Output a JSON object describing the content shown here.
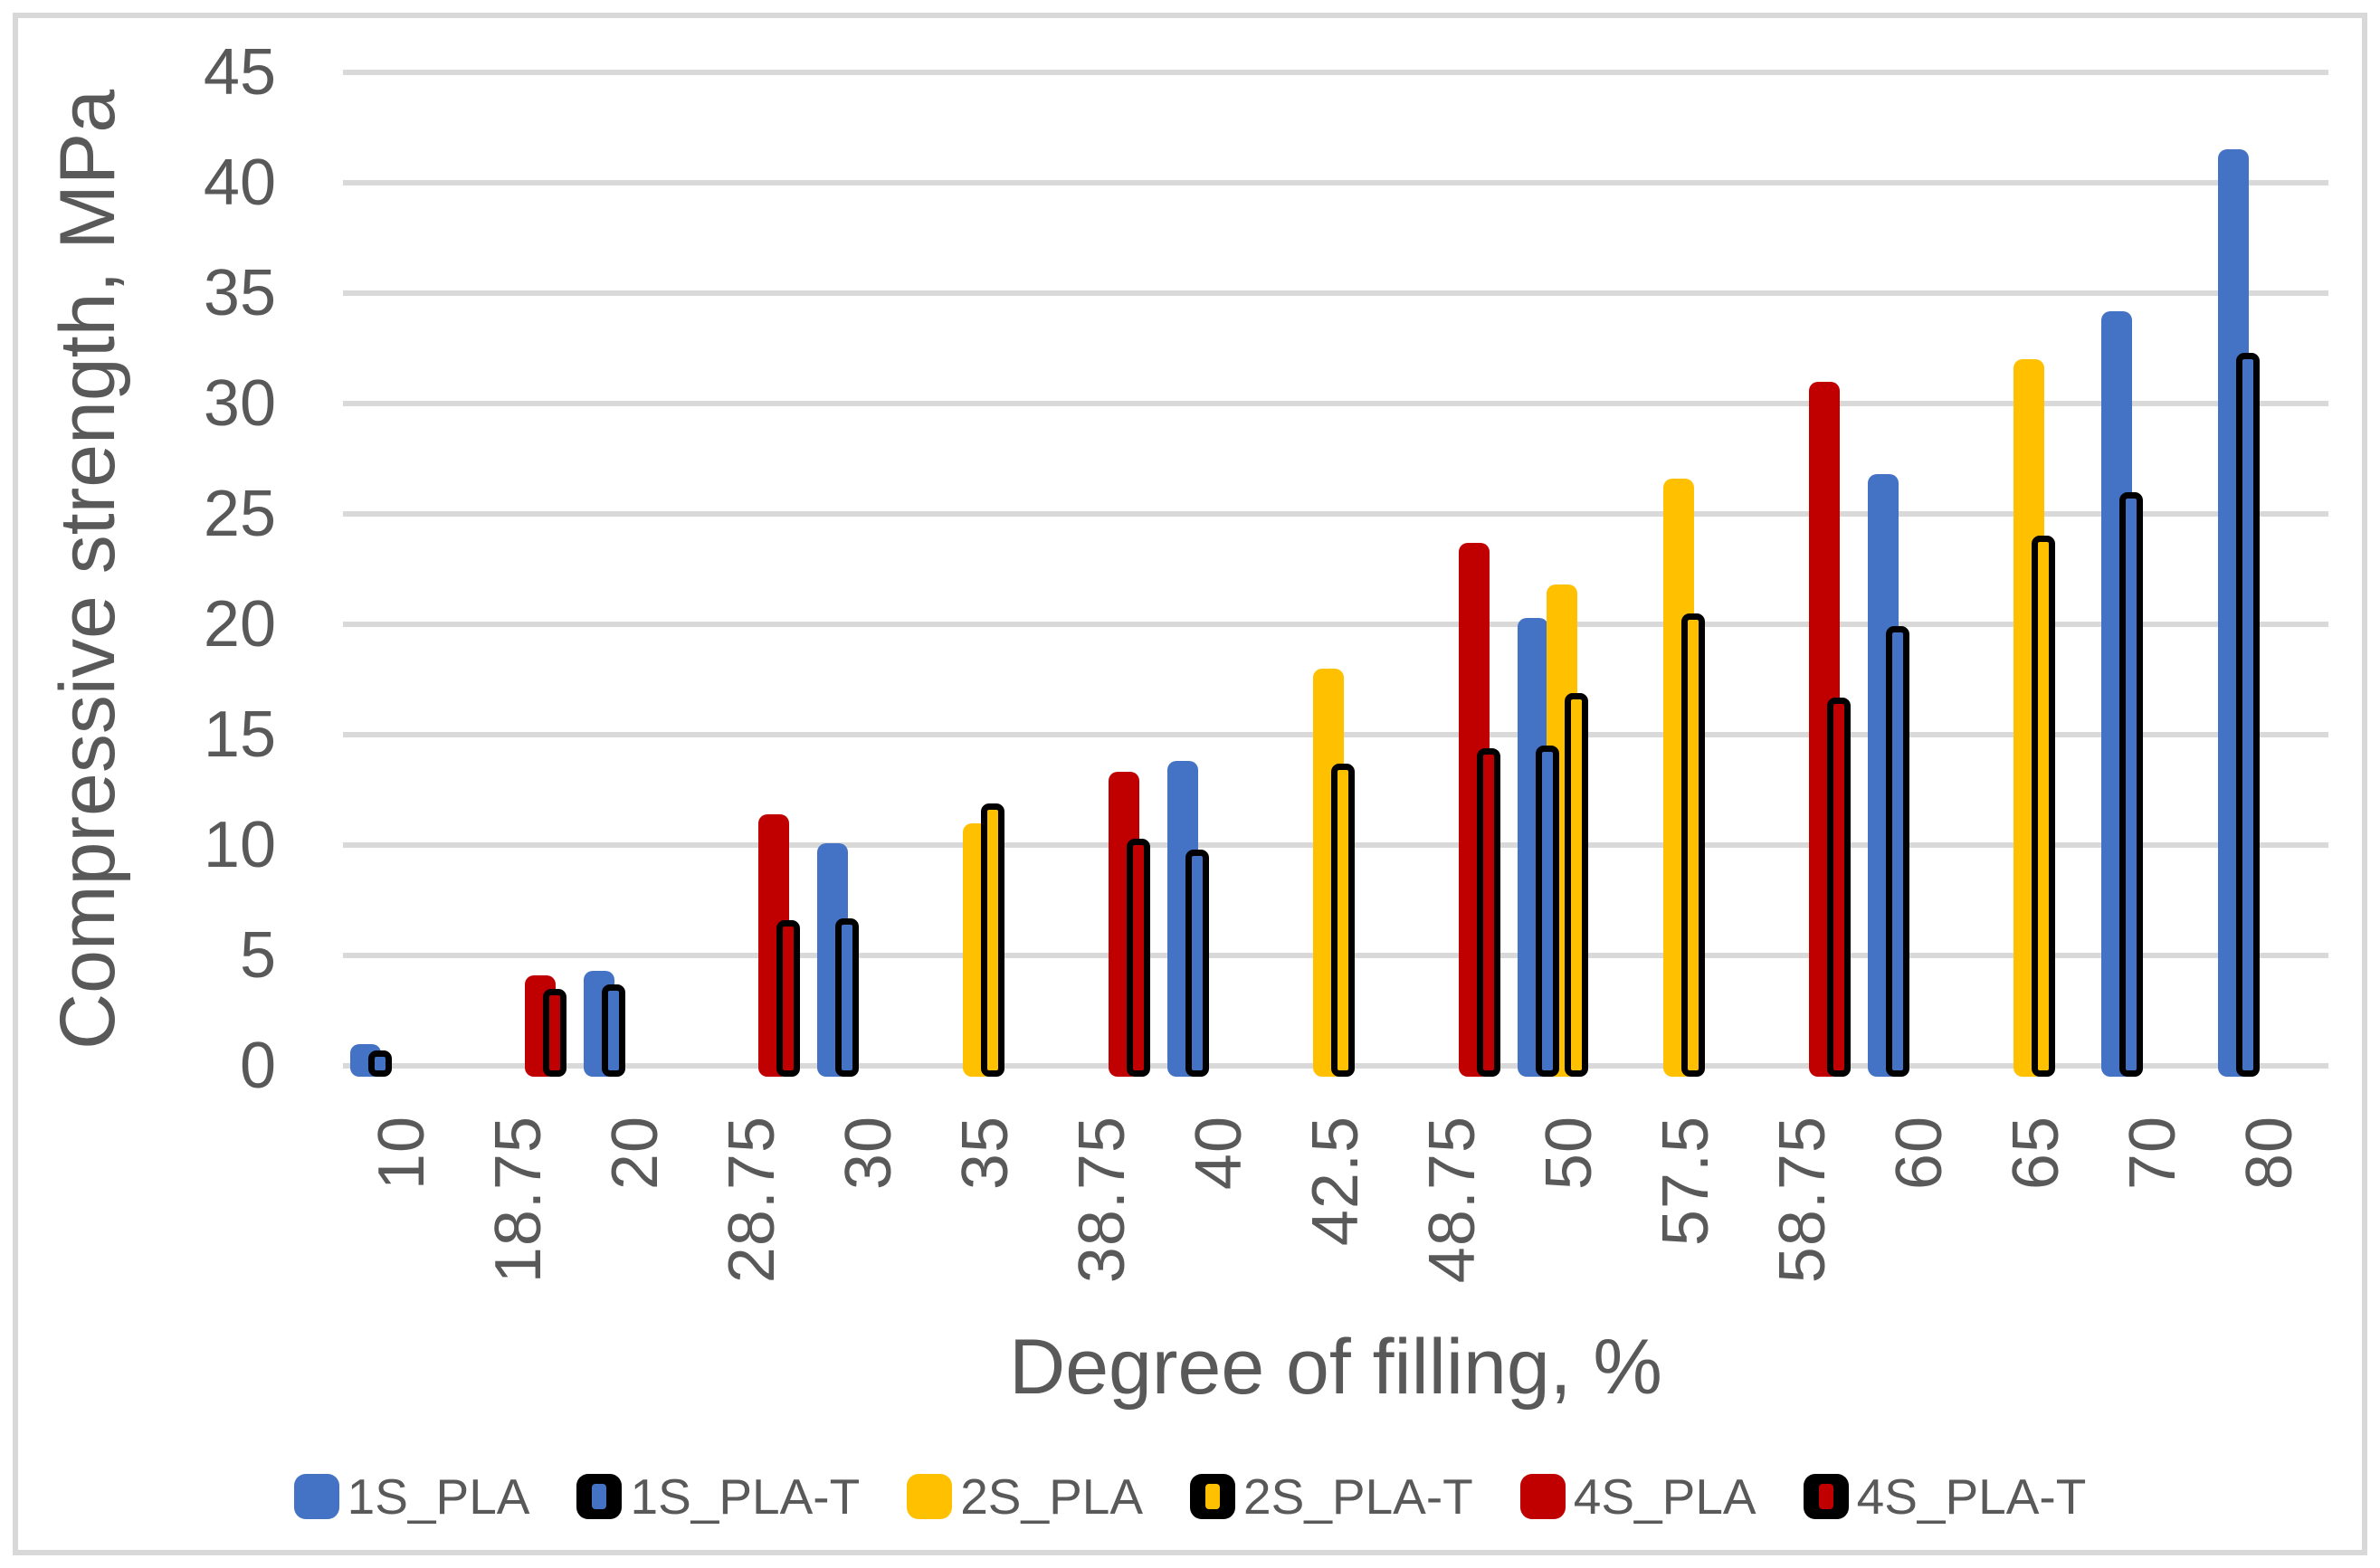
{
  "figure": {
    "y_axis_title": "Compressive strength, MPa",
    "x_axis_title": "Degree of filling, %"
  },
  "colors": {
    "blue": "#4472C4",
    "yellow": "#FFC000",
    "red": "#C00000",
    "outline": "#000000",
    "gridline": "#D9D9D9",
    "text": "#595959",
    "chart_border": "#D8D8D8"
  },
  "chart_data": {
    "type": "bar",
    "title": "",
    "xlabel": "Degree of filling, %",
    "ylabel": "Compressive strength, MPa",
    "ylim": [
      0,
      45
    ],
    "yticks": [
      0,
      5,
      10,
      15,
      20,
      25,
      30,
      35,
      40,
      45
    ],
    "grid": true,
    "legend_position": "bottom",
    "categories": [
      "10",
      "18.75",
      "20",
      "28.75",
      "30",
      "35",
      "38.75",
      "40",
      "42.5",
      "48.75",
      "50",
      "57.5",
      "58.75",
      "60",
      "65",
      "70",
      "80"
    ],
    "series": [
      {
        "name": "1S_PLA",
        "color": "#4472C4",
        "outlined": false,
        "values": {
          "10": 1.0,
          "20": 4.3,
          "30": 10.1,
          "40": 13.8,
          "50": 20.3,
          "60": 26.8,
          "70": 34.2,
          "80": 41.5
        }
      },
      {
        "name": "1S_PLA-T",
        "color": "#4472C4",
        "outlined": true,
        "values": {
          "10": 0.7,
          "20": 3.7,
          "30": 6.7,
          "40": 9.8,
          "50": 14.5,
          "60": 19.9,
          "70": 26.0,
          "80": 32.3
        }
      },
      {
        "name": "2S_PLA",
        "color": "#FFC000",
        "outlined": false,
        "values": {
          "35": 11.0,
          "42.5": 18.0,
          "50": 21.8,
          "57.5": 26.6,
          "65": 32.0
        }
      },
      {
        "name": "2S_PLA-T",
        "color": "#FFC000",
        "outlined": true,
        "values": {
          "35": 11.9,
          "42.5": 13.7,
          "50": 16.9,
          "57.5": 20.5,
          "65": 24.0
        }
      },
      {
        "name": "4S_PLA",
        "color": "#C00000",
        "outlined": false,
        "values": {
          "18.75": 4.1,
          "28.75": 11.4,
          "38.75": 13.3,
          "48.75": 23.7,
          "58.75": 31.0
        }
      },
      {
        "name": "4S_PLA-T",
        "color": "#C00000",
        "outlined": true,
        "values": {
          "18.75": 3.5,
          "28.75": 6.6,
          "38.75": 10.3,
          "48.75": 14.4,
          "58.75": 16.7
        }
      }
    ],
    "legend": [
      "1S_PLA",
      "1S_PLA-T",
      "2S_PLA",
      "2S_PLA-T",
      "4S_PLA",
      "4S_PLA-T"
    ]
  }
}
